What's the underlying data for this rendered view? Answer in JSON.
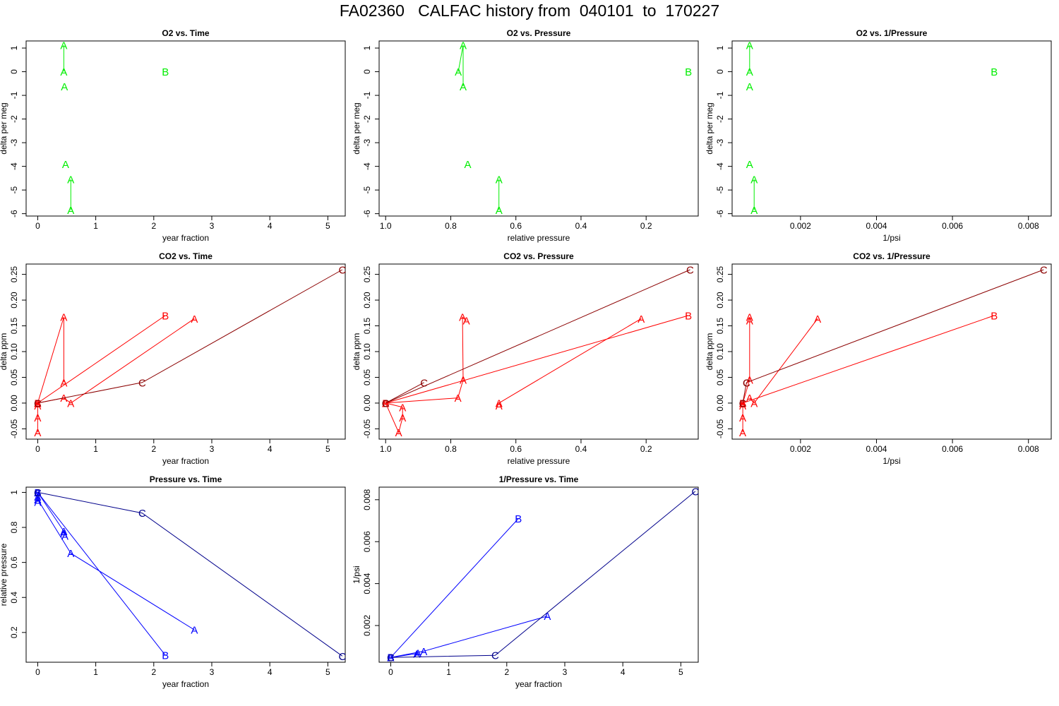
{
  "title": "FA02360   CALFAC history from  040101  to  170227",
  "colors": {
    "o2": "#00ee00",
    "co2": "#ff0000",
    "co2_c": "#8b0000",
    "pressure": "#0000ff",
    "pressure_c": "#00008b"
  },
  "chart_data": [
    {
      "id": "o2-time",
      "type": "line",
      "title": "O2 vs. Time",
      "xlabel": "year fraction",
      "ylabel": "delta per meg",
      "xlim": [
        -0.2,
        5.3
      ],
      "ylim": [
        -6.1,
        1.3
      ],
      "x_reversed": false,
      "xticks": [
        0,
        1,
        2,
        3,
        4,
        5
      ],
      "yticks": [
        -6,
        -5,
        -4,
        -3,
        -2,
        -1,
        0,
        1
      ],
      "series": [
        {
          "color": "o2",
          "points": [
            {
              "x": 0.45,
              "y": 1.12,
              "label": "A"
            },
            {
              "x": 0.45,
              "y": 0.0,
              "label": "A"
            }
          ]
        },
        {
          "color": "o2",
          "points": [
            {
              "x": 0.46,
              "y": -0.62,
              "label": "A"
            }
          ]
        },
        {
          "color": "o2",
          "points": [
            {
              "x": 0.48,
              "y": -3.9,
              "label": "A"
            }
          ]
        },
        {
          "color": "o2",
          "points": [
            {
              "x": 0.57,
              "y": -4.55,
              "label": "A"
            },
            {
              "x": 0.57,
              "y": -5.85,
              "label": "A"
            }
          ]
        },
        {
          "color": "o2",
          "points": [
            {
              "x": 2.2,
              "y": 0.0,
              "label": "B"
            }
          ]
        }
      ]
    },
    {
      "id": "o2-pressure",
      "type": "line",
      "title": "O2 vs. Pressure",
      "xlabel": "relative pressure",
      "ylabel": "delta per meg",
      "xlim": [
        1.02,
        0.04
      ],
      "ylim": [
        -6.1,
        1.3
      ],
      "x_reversed": true,
      "xticks": [
        1.0,
        0.8,
        0.6,
        0.4,
        0.2
      ],
      "yticks": [
        -6,
        -5,
        -4,
        -3,
        -2,
        -1,
        0,
        1
      ],
      "series": [
        {
          "color": "o2",
          "points": [
            {
              "x": 0.777,
              "y": 0.0,
              "label": "A"
            },
            {
              "x": 0.762,
              "y": 1.12,
              "label": "A"
            },
            {
              "x": 0.762,
              "y": -0.62,
              "label": "A"
            }
          ]
        },
        {
          "color": "o2",
          "points": [
            {
              "x": 0.748,
              "y": -3.9,
              "label": "A"
            }
          ]
        },
        {
          "color": "o2",
          "points": [
            {
              "x": 0.652,
              "y": -4.55,
              "label": "A"
            },
            {
              "x": 0.652,
              "y": -5.85,
              "label": "A"
            }
          ]
        },
        {
          "color": "o2",
          "points": [
            {
              "x": 0.07,
              "y": 0.0,
              "label": "B"
            }
          ]
        }
      ]
    },
    {
      "id": "o2-invpressure",
      "type": "line",
      "title": "O2 vs. 1/Pressure",
      "xlabel": "1/psi",
      "ylabel": "delta per meg",
      "xlim": [
        0.0002,
        0.0086
      ],
      "ylim": [
        -6.1,
        1.3
      ],
      "x_reversed": false,
      "xticks": [
        0.002,
        0.004,
        0.006,
        0.008
      ],
      "yticks": [
        -6,
        -5,
        -4,
        -3,
        -2,
        -1,
        0,
        1
      ],
      "series": [
        {
          "color": "o2",
          "points": [
            {
              "x": 0.00066,
              "y": 1.12,
              "label": "A"
            },
            {
              "x": 0.00066,
              "y": 0.0,
              "label": "A"
            }
          ]
        },
        {
          "color": "o2",
          "points": [
            {
              "x": 0.00066,
              "y": -0.62,
              "label": "A"
            }
          ]
        },
        {
          "color": "o2",
          "points": [
            {
              "x": 0.00066,
              "y": -3.9,
              "label": "A"
            }
          ]
        },
        {
          "color": "o2",
          "points": [
            {
              "x": 0.00078,
              "y": -4.55,
              "label": "A"
            },
            {
              "x": 0.00078,
              "y": -5.85,
              "label": "A"
            }
          ]
        },
        {
          "color": "o2",
          "points": [
            {
              "x": 0.0071,
              "y": 0.0,
              "label": "B"
            }
          ]
        }
      ]
    },
    {
      "id": "co2-time",
      "type": "line",
      "title": "CO2 vs. Time",
      "xlabel": "year fraction",
      "ylabel": "delta ppm",
      "xlim": [
        -0.2,
        5.3
      ],
      "ylim": [
        -0.07,
        0.27
      ],
      "x_reversed": false,
      "xticks": [
        0,
        1,
        2,
        3,
        4,
        5
      ],
      "yticks": [
        -0.05,
        0.0,
        0.05,
        0.1,
        0.15,
        0.2,
        0.25
      ],
      "series": [
        {
          "color": "co2",
          "points": [
            {
              "x": 0.0,
              "y": 0.0,
              "label": "A"
            },
            {
              "x": 0.0,
              "y": -0.005,
              "label": "A"
            },
            {
              "x": 0.0,
              "y": -0.028,
              "label": "A"
            },
            {
              "x": 0.0,
              "y": -0.057,
              "label": "A"
            }
          ]
        },
        {
          "color": "co2",
          "points": [
            {
              "x": 0.0,
              "y": 0.0,
              "label": "A"
            },
            {
              "x": 0.45,
              "y": 0.167,
              "label": "A"
            },
            {
              "x": 0.45,
              "y": 0.04,
              "label": "A"
            }
          ]
        },
        {
          "color": "co2",
          "points": [
            {
              "x": 0.0,
              "y": 0.0,
              "label": "A"
            },
            {
              "x": 0.45,
              "y": 0.01,
              "label": "A"
            },
            {
              "x": 0.57,
              "y": 0.0,
              "label": "A"
            },
            {
              "x": 2.7,
              "y": 0.164,
              "label": "A"
            }
          ]
        },
        {
          "color": "co2",
          "points": [
            {
              "x": 0.0,
              "y": 0.0,
              "label": "B"
            },
            {
              "x": 2.2,
              "y": 0.17,
              "label": "B"
            }
          ]
        },
        {
          "color": "co2_c",
          "points": [
            {
              "x": 0.0,
              "y": 0.0,
              "label": "C"
            },
            {
              "x": 1.8,
              "y": 0.04,
              "label": "C"
            },
            {
              "x": 5.25,
              "y": 0.259,
              "label": "C"
            }
          ]
        }
      ]
    },
    {
      "id": "co2-pressure",
      "type": "line",
      "title": "CO2 vs. Pressure",
      "xlabel": "relative pressure",
      "ylabel": "delta ppm",
      "xlim": [
        1.02,
        0.04
      ],
      "ylim": [
        -0.07,
        0.27
      ],
      "x_reversed": true,
      "xticks": [
        1.0,
        0.8,
        0.6,
        0.4,
        0.2
      ],
      "yticks": [
        -0.05,
        0.0,
        0.05,
        0.1,
        0.15,
        0.2,
        0.25
      ],
      "series": [
        {
          "color": "co2",
          "points": [
            {
              "x": 1.0,
              "y": 0.0,
              "label": "A"
            },
            {
              "x": 0.948,
              "y": -0.008,
              "label": "A"
            },
            {
              "x": 0.948,
              "y": -0.028,
              "label": "A"
            },
            {
              "x": 0.96,
              "y": -0.057,
              "label": "A"
            },
            {
              "x": 1.0,
              "y": 0.0,
              "label": "A"
            }
          ]
        },
        {
          "color": "co2",
          "points": [
            {
              "x": 1.0,
              "y": 0.0,
              "label": "A"
            },
            {
              "x": 0.778,
              "y": 0.01,
              "label": "A"
            },
            {
              "x": 0.762,
              "y": 0.045,
              "label": "A"
            },
            {
              "x": 0.764,
              "y": 0.167,
              "label": "A"
            },
            {
              "x": 0.752,
              "y": 0.16,
              "label": "A"
            }
          ]
        },
        {
          "color": "co2",
          "points": [
            {
              "x": 0.652,
              "y": 0.0,
              "label": "A"
            },
            {
              "x": 0.215,
              "y": 0.164,
              "label": "A"
            }
          ]
        },
        {
          "color": "co2",
          "points": [
            {
              "x": 0.652,
              "y": -0.005,
              "label": "A"
            }
          ]
        },
        {
          "color": "co2",
          "points": [
            {
              "x": 1.0,
              "y": 0.0,
              "label": "B"
            },
            {
              "x": 0.07,
              "y": 0.17,
              "label": "B"
            }
          ]
        },
        {
          "color": "co2_c",
          "points": [
            {
              "x": 1.0,
              "y": 0.0,
              "label": "C"
            },
            {
              "x": 0.882,
              "y": 0.04,
              "label": "C"
            }
          ]
        },
        {
          "color": "co2_c",
          "points": [
            {
              "x": 1.0,
              "y": 0.0,
              "label": "C"
            },
            {
              "x": 0.065,
              "y": 0.259,
              "label": "C"
            }
          ]
        }
      ]
    },
    {
      "id": "co2-invpressure",
      "type": "line",
      "title": "CO2 vs. 1/Pressure",
      "xlabel": "1/psi",
      "ylabel": "delta ppm",
      "xlim": [
        0.0002,
        0.0086
      ],
      "ylim": [
        -0.07,
        0.27
      ],
      "x_reversed": false,
      "xticks": [
        0.002,
        0.004,
        0.006,
        0.008
      ],
      "yticks": [
        -0.05,
        0.0,
        0.05,
        0.1,
        0.15,
        0.2,
        0.25
      ],
      "series": [
        {
          "color": "co2",
          "points": [
            {
              "x": 0.00048,
              "y": 0.0,
              "label": "A"
            },
            {
              "x": 0.00048,
              "y": -0.005,
              "label": "A"
            },
            {
              "x": 0.00048,
              "y": -0.028,
              "label": "A"
            },
            {
              "x": 0.00048,
              "y": -0.057,
              "label": "A"
            }
          ]
        },
        {
          "color": "co2",
          "points": [
            {
              "x": 0.00048,
              "y": 0.0,
              "label": "A"
            },
            {
              "x": 0.00066,
              "y": 0.045,
              "label": "A"
            },
            {
              "x": 0.00066,
              "y": 0.167,
              "label": "A"
            },
            {
              "x": 0.00066,
              "y": 0.16,
              "label": "A"
            }
          ]
        },
        {
          "color": "co2",
          "points": [
            {
              "x": 0.00066,
              "y": 0.01,
              "label": "A"
            },
            {
              "x": 0.00078,
              "y": 0.0,
              "label": "A"
            },
            {
              "x": 0.00245,
              "y": 0.164,
              "label": "A"
            }
          ]
        },
        {
          "color": "co2",
          "points": [
            {
              "x": 0.00048,
              "y": 0.0,
              "label": "B"
            },
            {
              "x": 0.0071,
              "y": 0.17,
              "label": "B"
            }
          ]
        },
        {
          "color": "co2_c",
          "points": [
            {
              "x": 0.00048,
              "y": 0.0,
              "label": "C"
            },
            {
              "x": 0.00058,
              "y": 0.04,
              "label": "C"
            }
          ]
        },
        {
          "color": "co2_c",
          "points": [
            {
              "x": 0.00058,
              "y": 0.04,
              "label": "C"
            },
            {
              "x": 0.0084,
              "y": 0.259,
              "label": "C"
            }
          ]
        }
      ]
    },
    {
      "id": "pressure-time",
      "type": "line",
      "title": "Pressure vs. Time",
      "xlabel": "year fraction",
      "ylabel": "relative pressure",
      "xlim": [
        -0.2,
        5.3
      ],
      "ylim": [
        0.03,
        1.03
      ],
      "x_reversed": false,
      "xticks": [
        0,
        1,
        2,
        3,
        4,
        5
      ],
      "yticks": [
        0.2,
        0.4,
        0.6,
        0.8,
        1.0
      ],
      "series": [
        {
          "color": "pressure",
          "points": [
            {
              "x": 0.0,
              "y": 1.0,
              "label": "A"
            },
            {
              "x": 0.0,
              "y": 0.975,
              "label": "A"
            },
            {
              "x": 0.0,
              "y": 0.96,
              "label": "A"
            },
            {
              "x": 0.0,
              "y": 0.945,
              "label": "A"
            }
          ]
        },
        {
          "color": "pressure",
          "points": [
            {
              "x": 0.0,
              "y": 1.0,
              "label": "A"
            },
            {
              "x": 0.45,
              "y": 0.778,
              "label": "A"
            },
            {
              "x": 0.45,
              "y": 0.765,
              "label": "A"
            },
            {
              "x": 0.47,
              "y": 0.752,
              "label": "A"
            }
          ]
        },
        {
          "color": "pressure",
          "points": [
            {
              "x": 0.0,
              "y": 0.96,
              "label": "A"
            },
            {
              "x": 0.57,
              "y": 0.652,
              "label": "A"
            },
            {
              "x": 2.7,
              "y": 0.215,
              "label": "A"
            }
          ]
        },
        {
          "color": "pressure",
          "points": [
            {
              "x": 0.0,
              "y": 1.0,
              "label": "B"
            },
            {
              "x": 2.2,
              "y": 0.07,
              "label": "B"
            }
          ]
        },
        {
          "color": "pressure_c",
          "points": [
            {
              "x": 0.0,
              "y": 1.0,
              "label": "C"
            },
            {
              "x": 1.8,
              "y": 0.882,
              "label": "C"
            },
            {
              "x": 5.25,
              "y": 0.065,
              "label": "C"
            }
          ]
        }
      ]
    },
    {
      "id": "invpressure-time",
      "type": "line",
      "title": "1/Pressure vs. Time",
      "xlabel": "year fraction",
      "ylabel": "1/psi",
      "xlim": [
        -0.2,
        5.3
      ],
      "ylim": [
        0.00025,
        0.0086
      ],
      "x_reversed": false,
      "xticks": [
        0,
        1,
        2,
        3,
        4,
        5
      ],
      "yticks": [
        0.002,
        0.004,
        0.006,
        0.008
      ],
      "series": [
        {
          "color": "pressure",
          "points": [
            {
              "x": 0.0,
              "y": 0.00048,
              "label": "A"
            },
            {
              "x": 0.45,
              "y": 0.00066,
              "label": "A"
            },
            {
              "x": 0.47,
              "y": 0.00068,
              "label": "A"
            }
          ]
        },
        {
          "color": "pressure",
          "points": [
            {
              "x": 0.0,
              "y": 0.00048,
              "label": "A"
            },
            {
              "x": 0.57,
              "y": 0.00078,
              "label": "A"
            },
            {
              "x": 2.7,
              "y": 0.00245,
              "label": "A"
            }
          ]
        },
        {
          "color": "pressure",
          "points": [
            {
              "x": 0.0,
              "y": 0.00048,
              "label": "B"
            },
            {
              "x": 2.2,
              "y": 0.0071,
              "label": "B"
            }
          ]
        },
        {
          "color": "pressure_c",
          "points": [
            {
              "x": 0.0,
              "y": 0.00048,
              "label": "C"
            },
            {
              "x": 1.8,
              "y": 0.00058,
              "label": "C"
            },
            {
              "x": 5.25,
              "y": 0.0084,
              "label": "C"
            }
          ]
        }
      ]
    }
  ]
}
